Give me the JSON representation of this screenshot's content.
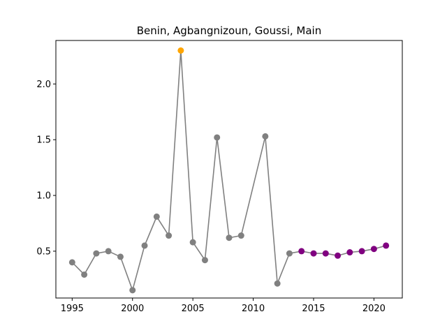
{
  "chart_data": {
    "type": "line",
    "title": "Benin, Agbangnizoun, Goussi, Main",
    "xlabel": "",
    "ylabel": "",
    "xlim": [
      1993.65,
      2022.35
    ],
    "ylim": [
      0.08,
      2.39
    ],
    "x_ticks": [
      1995,
      2000,
      2005,
      2010,
      2015,
      2020
    ],
    "y_ticks": [
      0.5,
      1.0,
      1.5,
      2.0
    ],
    "x_tick_labels": [
      "1995",
      "2000",
      "2005",
      "2010",
      "2015",
      "2020"
    ],
    "y_tick_labels": [
      "0.5",
      "1.0",
      "1.5",
      "2.0"
    ],
    "grid": false,
    "line_color": "#808080",
    "series": [
      {
        "x": [
          1995,
          1996,
          1997,
          1998,
          1999,
          2000,
          2001,
          2002,
          2003,
          2004,
          2005,
          2006,
          2007,
          2008,
          2009,
          2011,
          2012,
          2013,
          2014,
          2015,
          2016,
          2017,
          2018,
          2019,
          2020,
          2021
        ],
        "y": [
          0.4,
          0.29,
          0.48,
          0.5,
          0.45,
          0.15,
          0.55,
          0.81,
          0.64,
          2.3,
          0.58,
          0.42,
          1.52,
          0.62,
          0.64,
          1.53,
          0.21,
          0.48,
          0.5,
          0.48,
          0.48,
          0.46,
          0.49,
          0.5,
          0.52,
          0.55
        ],
        "colors": [
          "#808080",
          "#808080",
          "#808080",
          "#808080",
          "#808080",
          "#808080",
          "#808080",
          "#808080",
          "#808080",
          "#ffa500",
          "#808080",
          "#808080",
          "#808080",
          "#808080",
          "#808080",
          "#808080",
          "#808080",
          "#808080",
          "#800080",
          "#800080",
          "#800080",
          "#800080",
          "#800080",
          "#800080",
          "#800080",
          "#800080"
        ]
      }
    ]
  }
}
